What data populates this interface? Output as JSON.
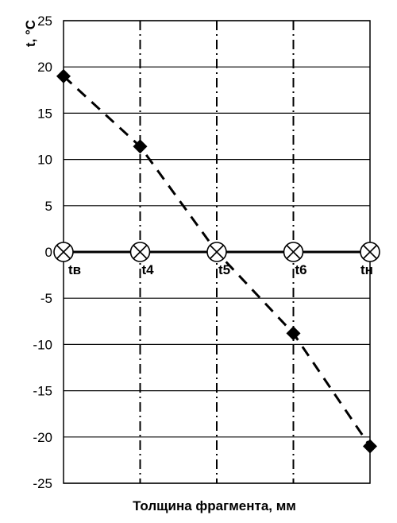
{
  "chart_data": {
    "type": "line",
    "xlabel": "Толщина фрагмента, мм",
    "ylabel": "t, °C",
    "ylim": [
      -25,
      25
    ],
    "yticks": [
      25,
      20,
      15,
      10,
      5,
      0,
      -5,
      -10,
      -15,
      -20,
      -25
    ],
    "grid": "horizontal solid, vertical dash-dot at layer boundaries",
    "boundaries": [
      {
        "label": "tв",
        "x": 0
      },
      {
        "label": "t4",
        "x": 1
      },
      {
        "label": "t5",
        "x": 2
      },
      {
        "label": "t6",
        "x": 3
      },
      {
        "label": "tн",
        "x": 4
      }
    ],
    "series": [
      {
        "style": "dashed line, diamond markers",
        "color": "#000000",
        "x": [
          0,
          1,
          2,
          3,
          4
        ],
        "y": [
          19.0,
          11.4,
          0.0,
          -8.8,
          -21.0
        ]
      },
      {
        "style": "solid line, circled-x markers",
        "color": "#000000",
        "x": [
          0,
          1,
          2,
          3,
          4
        ],
        "y": [
          0,
          0,
          0,
          0,
          0
        ]
      }
    ]
  }
}
